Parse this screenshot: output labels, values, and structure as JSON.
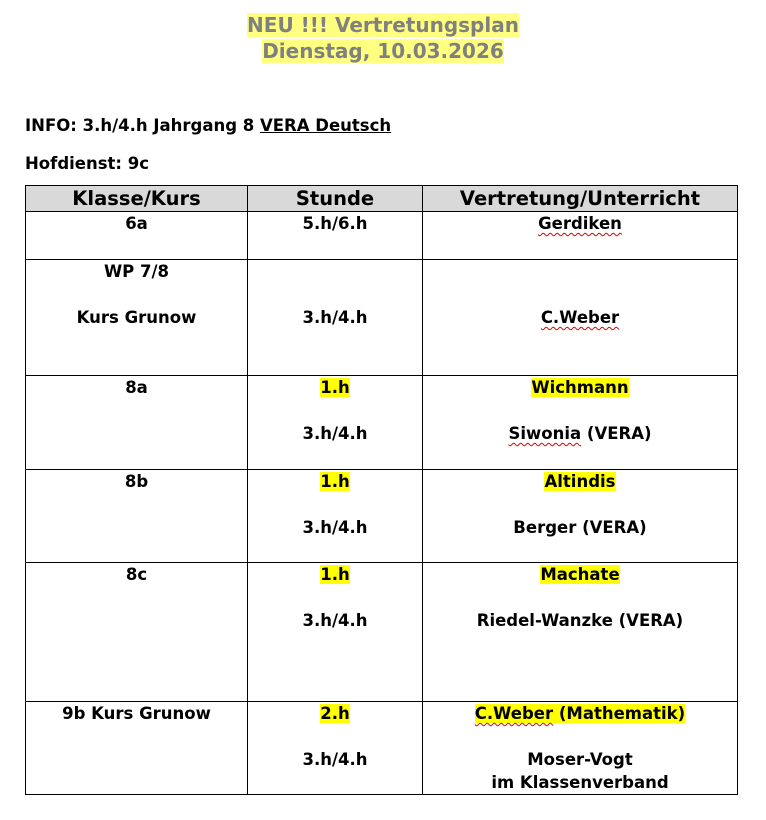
{
  "title": {
    "line1": "NEU !!! Vertretungsplan",
    "line2": "Dienstag, 10.03.2026"
  },
  "info": {
    "prefix": "INFO: 3.h/4.h Jahrgang 8 ",
    "underlined": "VERA Deutsch"
  },
  "hofdienst": "Hofdienst: 9c",
  "colors": {
    "title_highlight": "#ffff80",
    "title_text": "#808080",
    "highlight": "#ffff00",
    "header_bg": "#d9d9d9"
  },
  "table": {
    "headers": [
      "Klasse/Kurs",
      "Stunde",
      "Vertretung/Unterricht"
    ],
    "rows": [
      {
        "height": 47,
        "cells": [
          [
            {
              "t": "6a"
            }
          ],
          [
            {
              "t": "5.h/6.h"
            }
          ],
          [
            {
              "t": "Gerdiken",
              "sp": "Gerdiken"
            }
          ]
        ]
      },
      {
        "height": 115,
        "cells": [
          [
            {
              "t": "WP 7/8"
            },
            {
              "t": ""
            },
            {
              "t": "Kurs Grunow"
            }
          ],
          [
            {
              "t": ""
            },
            {
              "t": ""
            },
            {
              "t": "3.h/4.h"
            }
          ],
          [
            {
              "t": ""
            },
            {
              "t": ""
            },
            {
              "t": "C.Weber",
              "sp": "C.Weber"
            }
          ]
        ]
      },
      {
        "height": 93,
        "cells": [
          [
            {
              "t": "8a"
            }
          ],
          [
            {
              "t": "1.h",
              "hl": true
            },
            {
              "t": ""
            },
            {
              "t": "3.h/4.h"
            }
          ],
          [
            {
              "t": "Wichmann",
              "hl": true
            },
            {
              "t": ""
            },
            {
              "t": "Siwonia (VERA)",
              "sp": "Siwonia"
            }
          ]
        ]
      },
      {
        "height": 92,
        "cells": [
          [
            {
              "t": "8b"
            }
          ],
          [
            {
              "t": "1.h",
              "hl": true
            },
            {
              "t": ""
            },
            {
              "t": "3.h/4.h"
            }
          ],
          [
            {
              "t": "Altindis",
              "hl": true
            },
            {
              "t": ""
            },
            {
              "t": "Berger (VERA)"
            }
          ]
        ]
      },
      {
        "height": 138,
        "cells": [
          [
            {
              "t": "8c"
            }
          ],
          [
            {
              "t": "1.h",
              "hl": true
            },
            {
              "t": ""
            },
            {
              "t": "3.h/4.h"
            }
          ],
          [
            {
              "t": "Machate",
              "hl": true
            },
            {
              "t": ""
            },
            {
              "t": "Riedel-Wanzke (VERA)"
            }
          ]
        ]
      },
      {
        "height": 92,
        "cells": [
          [
            {
              "t": "9b Kurs Grunow"
            }
          ],
          [
            {
              "t": "2.h",
              "hl": true
            },
            {
              "t": ""
            },
            {
              "t": "3.h/4.h"
            }
          ],
          [
            {
              "t": "C.Weber (Mathematik)",
              "hl": true,
              "sp": "C.Weber"
            },
            {
              "t": ""
            },
            {
              "t": "Moser-Vogt"
            },
            {
              "t": "im Klassenverband"
            }
          ]
        ]
      }
    ]
  }
}
